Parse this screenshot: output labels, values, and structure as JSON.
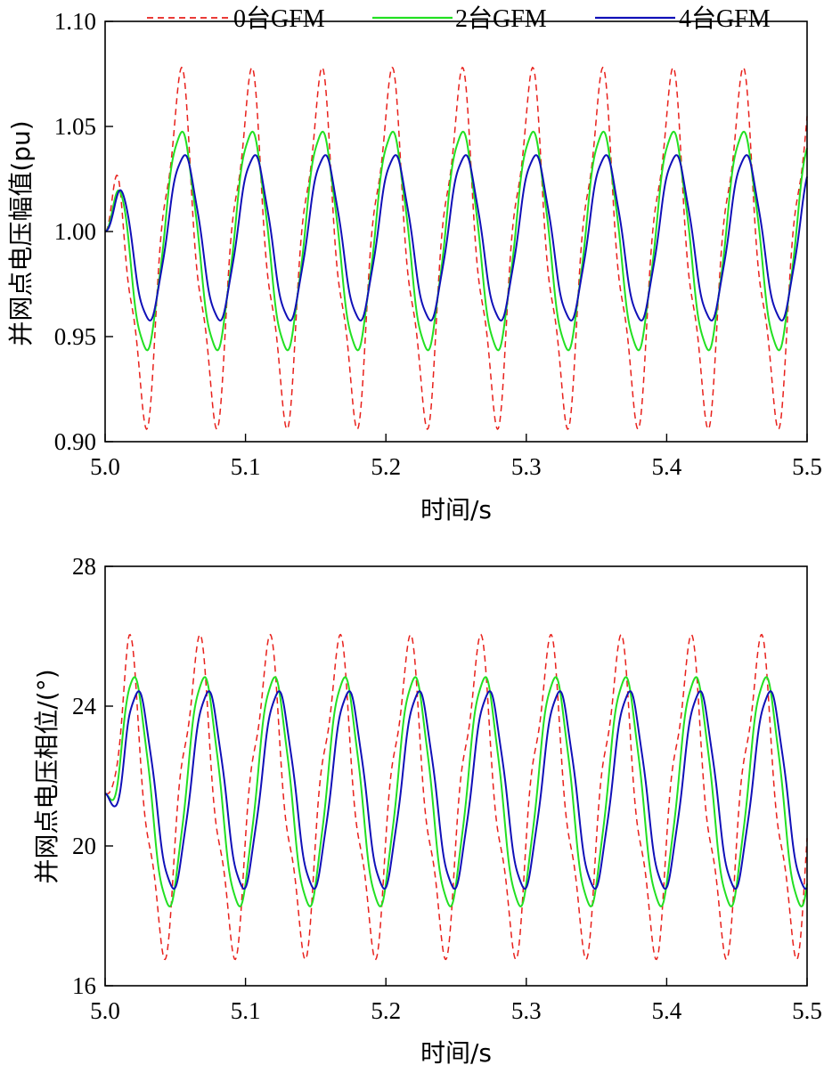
{
  "legend": [
    {
      "label": "0台GFM",
      "color": "#e8211c",
      "dash": "7,5"
    },
    {
      "label": "2台GFM",
      "color": "#22e022",
      "dash": ""
    },
    {
      "label": "4台GFM",
      "color": "#1010b8",
      "dash": ""
    }
  ],
  "chart_data": [
    {
      "type": "line",
      "xlabel": "时间/s",
      "ylabel": "并网点电压幅值(pu)",
      "xlim": [
        5.0,
        5.5
      ],
      "ylim": [
        0.9,
        1.1
      ],
      "xticks": [
        "5.0",
        "5.1",
        "5.2",
        "5.3",
        "5.4",
        "5.5"
      ],
      "yticks": [
        "0.90",
        "0.95",
        "1.00",
        "1.05",
        "1.10"
      ],
      "grid": false,
      "legend_position": "top",
      "oscillation_period_s": 0.05,
      "series": [
        {
          "name": "0台GFM",
          "color": "#e8211c",
          "dashed": true,
          "start": 1.0,
          "mean": 0.992,
          "peak": 1.068,
          "trough": 0.918,
          "first_peak_t": 5.053
        },
        {
          "name": "2台GFM",
          "color": "#22e022",
          "dashed": false,
          "start": 1.0,
          "mean": 0.9955,
          "peak": 1.047,
          "trough": 0.944,
          "first_peak_t": 5.054
        },
        {
          "name": "4台GFM",
          "color": "#1010b8",
          "dashed": false,
          "start": 1.0,
          "mean": 0.997,
          "peak": 1.036,
          "trough": 0.958,
          "first_peak_t": 5.056
        }
      ]
    },
    {
      "type": "line",
      "xlabel": "时间/s",
      "ylabel": "并网点电压相位/(°)",
      "xlim": [
        5.0,
        5.5
      ],
      "ylim": [
        16,
        28
      ],
      "xticks": [
        "5.0",
        "5.1",
        "5.2",
        "5.3",
        "5.4",
        "5.5"
      ],
      "yticks": [
        "16",
        "20",
        "24",
        "28"
      ],
      "grid": false,
      "oscillation_period_s": 0.05,
      "series": [
        {
          "name": "0台GFM",
          "color": "#e8211c",
          "dashed": true,
          "start": 21.5,
          "mean": 21.4,
          "peak": 25.5,
          "trough": 17.4,
          "first_peak_t": 5.016
        },
        {
          "name": "2台GFM",
          "color": "#22e022",
          "dashed": false,
          "start": 21.5,
          "mean": 21.55,
          "peak": 24.8,
          "trough": 18.3,
          "first_peak_t": 5.02
        },
        {
          "name": "4台GFM",
          "color": "#1010b8",
          "dashed": false,
          "start": 21.5,
          "mean": 21.6,
          "peak": 24.4,
          "trough": 18.8,
          "first_peak_t": 5.023
        }
      ]
    }
  ]
}
